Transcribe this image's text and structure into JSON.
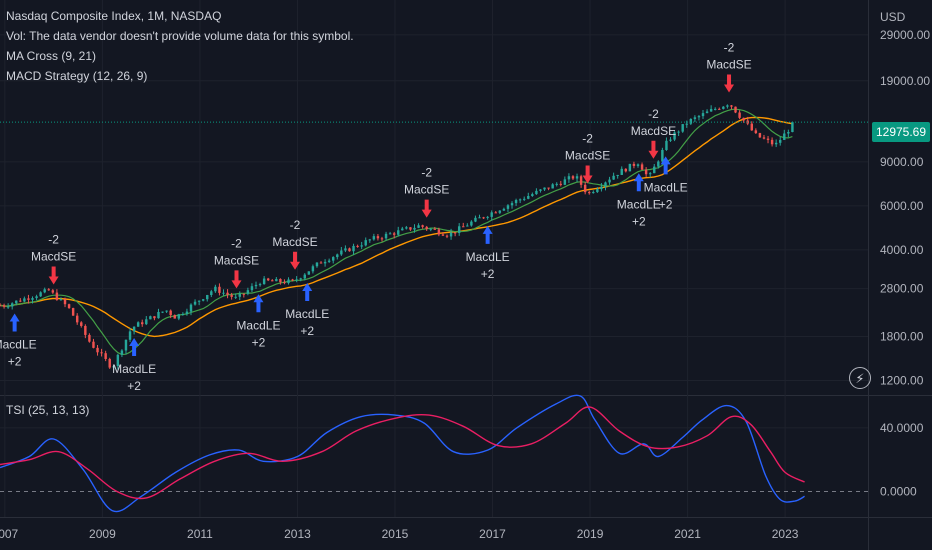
{
  "legend": {
    "symbol": "Nasdaq Composite Index, 1M, NASDAQ",
    "vol": "Vol: The data vendor doesn't provide volume data for this symbol.",
    "ma": "MA Cross (9, 21)",
    "macd": "MACD Strategy (12, 26, 9)",
    "tsi": "TSI (25, 13, 13)"
  },
  "currency": "USD",
  "last_price": "12975.69",
  "colors": {
    "background": "#131722",
    "up": "#26a69a",
    "down": "#ef5350",
    "ma_fast": "#43a047",
    "ma_slow": "#ff9800",
    "tsi_line": "#2962ff",
    "tsi_signal": "#e91e63",
    "buy_arrow": "#2962ff",
    "sell_arrow": "#f23645",
    "price_line": "#089981"
  },
  "chart_data": [
    {
      "type": "candlestick",
      "title": "Nasdaq Composite Index, 1M, NASDAQ",
      "y_scale": "log",
      "ylim": [
        1050,
        40000
      ],
      "xlim": [
        2006.9,
        2024.7
      ],
      "y_ticks": [
        "29000.00",
        "19000.00",
        "9000.00",
        "6000.00",
        "4000.00",
        "2800.00",
        "1800.00",
        "1200.00"
      ],
      "x_ticks": [
        "2007",
        "2009",
        "2011",
        "2013",
        "2015",
        "2017",
        "2019",
        "2021",
        "2023"
      ],
      "x_tick_values": [
        2007,
        2009,
        2011,
        2013,
        2015,
        2017,
        2019,
        2021,
        2023
      ],
      "price_anchors": {
        "t": [
          2007.0,
          2007.9,
          2008.3,
          2008.75,
          2009.2,
          2009.6,
          2010.3,
          2010.5,
          2011.3,
          2011.75,
          2012.25,
          2012.9,
          2013.5,
          2014.5,
          2015.5,
          2016.1,
          2016.6,
          2017.5,
          2018.7,
          2018.95,
          2019.5,
          2020.0,
          2020.2,
          2020.6,
          2021.0,
          2021.5,
          2021.85,
          2022.4,
          2022.8,
          2023.2
        ],
        "v": [
          2400,
          2750,
          2350,
          1700,
          1350,
          1950,
          2300,
          2150,
          2800,
          2550,
          3000,
          2980,
          3600,
          4400,
          5000,
          4600,
          5200,
          6300,
          7900,
          6700,
          8000,
          9000,
          7700,
          11000,
          13000,
          14500,
          15500,
          11500,
          10500,
          12975.69
        ]
      },
      "ma_cross": {
        "periods": [
          9,
          21
        ]
      },
      "signals": [
        {
          "t": 2007.2,
          "type": "MacdLE",
          "qty": "+2"
        },
        {
          "t": 2008.0,
          "type": "MacdSE",
          "qty": "-2"
        },
        {
          "t": 2009.65,
          "type": "MacdLE",
          "qty": "+2"
        },
        {
          "t": 2011.75,
          "type": "MacdSE",
          "qty": "-2"
        },
        {
          "t": 2012.2,
          "type": "MacdLE",
          "qty": "+2"
        },
        {
          "t": 2012.95,
          "type": "MacdSE",
          "qty": "-2"
        },
        {
          "t": 2013.2,
          "type": "MacdLE",
          "qty": "+2"
        },
        {
          "t": 2015.65,
          "type": "MacdSE",
          "qty": "-2"
        },
        {
          "t": 2016.9,
          "type": "MacdLE",
          "qty": "+2"
        },
        {
          "t": 2018.95,
          "type": "MacdSE",
          "qty": "-2"
        },
        {
          "t": 2020.0,
          "type": "MacdLE",
          "qty": "+2"
        },
        {
          "t": 2020.3,
          "type": "MacdSE",
          "qty": "-2"
        },
        {
          "t": 2020.55,
          "type": "MacdLE",
          "qty": "+2"
        },
        {
          "t": 2021.85,
          "type": "MacdSE",
          "qty": "-2"
        }
      ]
    },
    {
      "type": "line",
      "title": "TSI (25, 13, 13)",
      "ylim": [
        -16,
        60
      ],
      "y_ticks": [
        "40.0000",
        "0.0000"
      ],
      "y_tick_values": [
        40,
        0
      ],
      "series": [
        {
          "name": "TSI",
          "t": [
            2006.9,
            2007.5,
            2008.0,
            2008.6,
            2009.2,
            2009.8,
            2010.5,
            2011.2,
            2011.8,
            2012.3,
            2013.0,
            2013.6,
            2014.3,
            2015.0,
            2015.6,
            2016.2,
            2016.9,
            2017.5,
            2018.3,
            2018.8,
            2019.1,
            2019.6,
            2020.1,
            2020.4,
            2020.9,
            2021.3,
            2021.8,
            2022.2,
            2022.6,
            2022.9,
            2023.2,
            2023.4
          ],
          "v": [
            15,
            22,
            33,
            14,
            -12,
            -3,
            12,
            23,
            26,
            19,
            22,
            37,
            47,
            48,
            43,
            25,
            26,
            40,
            55,
            60,
            45,
            24,
            30,
            22,
            34,
            45,
            54,
            44,
            10,
            -5,
            -6,
            -3
          ]
        },
        {
          "name": "Signal",
          "t": [
            2006.9,
            2007.5,
            2008.1,
            2008.7,
            2009.3,
            2009.9,
            2010.6,
            2011.3,
            2012.0,
            2012.7,
            2013.5,
            2014.2,
            2015.0,
            2015.7,
            2016.4,
            2017.1,
            2017.8,
            2018.5,
            2019.0,
            2019.6,
            2020.2,
            2020.8,
            2021.4,
            2021.9,
            2022.3,
            2022.7,
            2023.0,
            2023.4
          ],
          "v": [
            17,
            20,
            25,
            14,
            0,
            -4,
            8,
            19,
            24,
            19,
            25,
            38,
            46,
            48,
            41,
            29,
            30,
            43,
            53,
            38,
            28,
            28,
            35,
            47,
            42,
            25,
            12,
            6
          ]
        }
      ]
    }
  ]
}
